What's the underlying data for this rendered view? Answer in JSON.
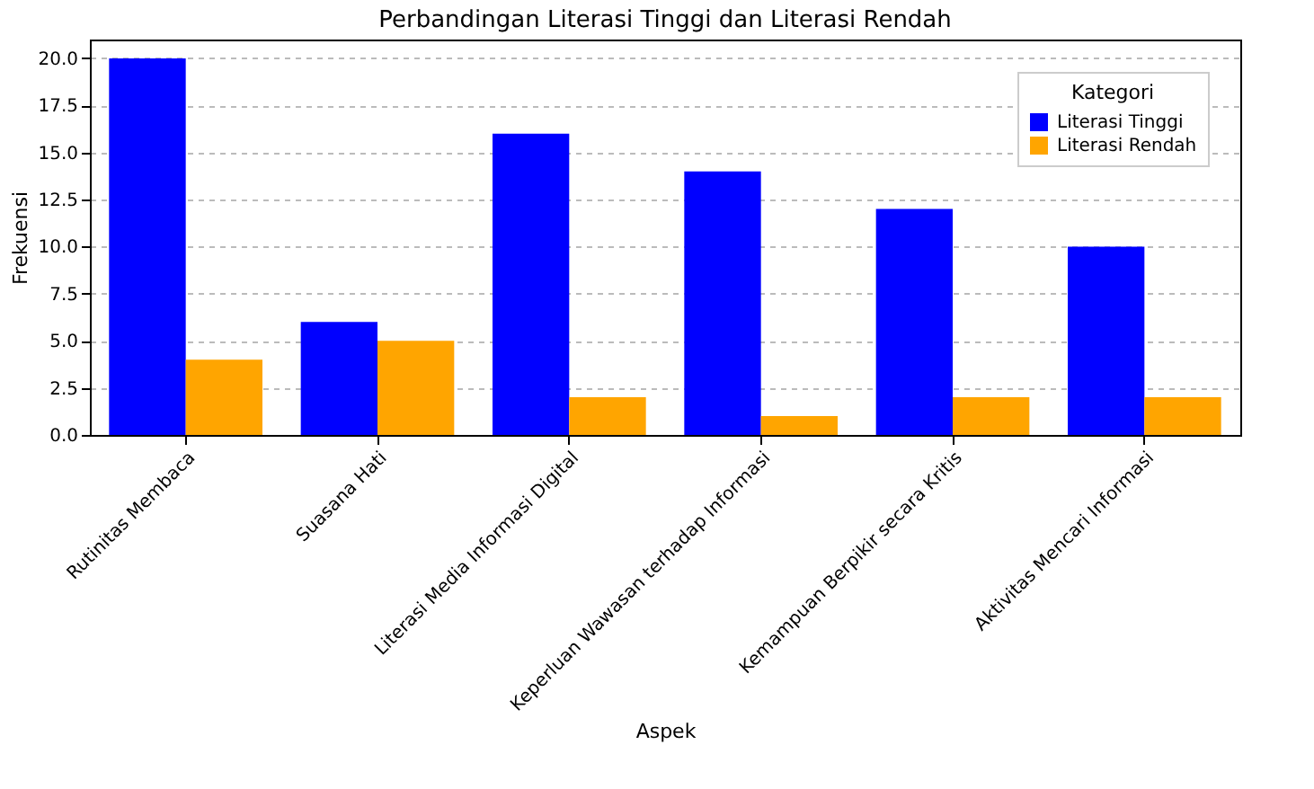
{
  "chart_data": {
    "type": "bar",
    "title": "Perbandingan Literasi Tinggi dan Literasi Rendah",
    "xlabel": "Aspek",
    "ylabel": "Frekuensi",
    "legend_title": "Kategori",
    "categories": [
      "Rutinitas Membaca",
      "Suasana Hati",
      "Literasi Media Informasi Digital",
      "Keperluan Wawasan terhadap Informasi",
      "Kemampuan Berpikir secara Kritis",
      "Aktivitas Mencari Informasi"
    ],
    "series": [
      {
        "name": "Literasi Tinggi",
        "color": "#0000ff",
        "values": [
          20,
          6,
          16,
          14,
          12,
          10
        ]
      },
      {
        "name": "Literasi Rendah",
        "color": "#ffa500",
        "values": [
          4,
          5,
          2,
          1,
          2,
          2
        ]
      }
    ],
    "ylim": [
      0,
      21
    ],
    "yticks": [
      {
        "value": 0,
        "label": "0.0"
      },
      {
        "value": 2.5,
        "label": "2.5"
      },
      {
        "value": 5,
        "label": "5.0"
      },
      {
        "value": 7.5,
        "label": "7.5"
      },
      {
        "value": 10,
        "label": "10.0"
      },
      {
        "value": 12.5,
        "label": "12.5"
      },
      {
        "value": 15,
        "label": "15.0"
      },
      {
        "value": 17.5,
        "label": "17.5"
      },
      {
        "value": 20,
        "label": "20.0"
      }
    ],
    "grid": "y",
    "legend": "top right"
  }
}
